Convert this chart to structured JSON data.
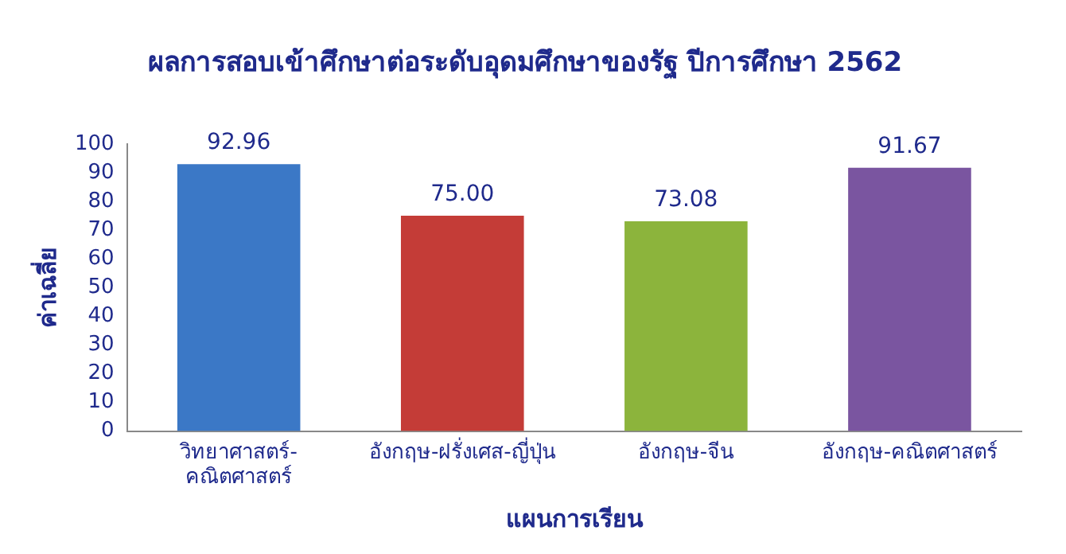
{
  "chart_data": {
    "type": "bar",
    "title": "ผลการสอบเข้าศึกษาต่อระดับอุดมศึกษาของรัฐ ปีการศึกษา 2562",
    "xlabel": "แผนการเรียน",
    "ylabel": "ค่าเฉลี่ย",
    "categories": [
      "วิทยาศาสตร์-คณิตศาสตร์",
      "อังกฤษ-ฝรั่งเศส-ญี่ปุ่น",
      "อังกฤษ-จีน",
      "อังกฤษ-คณิตศาสตร์"
    ],
    "values": [
      92.96,
      75.0,
      73.08,
      91.67
    ],
    "value_labels": [
      "92.96",
      "75.00",
      "73.08",
      "91.67"
    ],
    "colors": [
      "#3b78c6",
      "#c43c37",
      "#8cb43c",
      "#7a55a0"
    ],
    "ylim": [
      0,
      100
    ],
    "yticks": [
      0,
      10,
      20,
      30,
      40,
      50,
      60,
      70,
      80,
      90,
      100
    ],
    "grid": false,
    "legend": false
  }
}
